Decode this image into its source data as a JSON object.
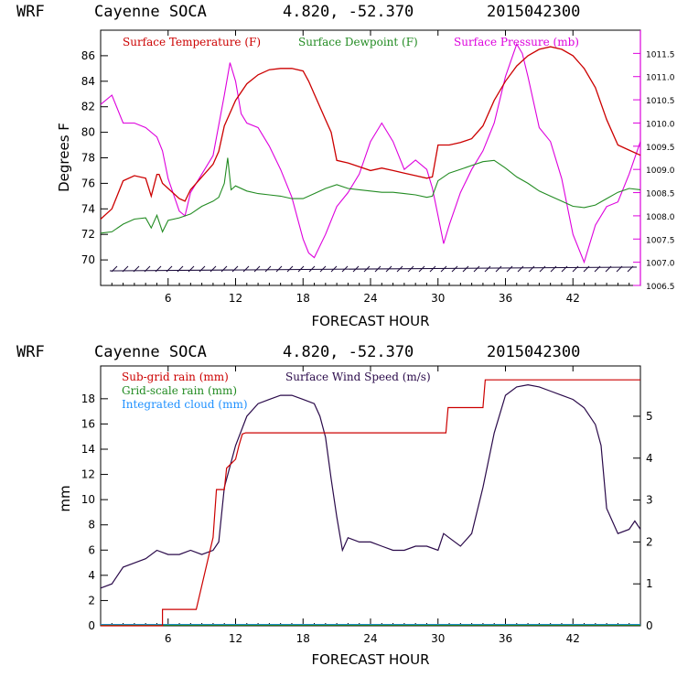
{
  "colors": {
    "temperature": "#cc0000",
    "dewpoint": "#228b22",
    "pressure": "#dd00dd",
    "subgrid": "#cc0000",
    "gridscale": "#228b22",
    "cloud": "#1e90ff",
    "wind": "#2a0a4a",
    "axis": "#000000",
    "barb": "#1a0a3a"
  },
  "chart_data": [
    {
      "type": "line",
      "header": {
        "model": "WRF",
        "station": "Cayenne SOCA",
        "coords": "4.820, -52.370",
        "run": "2015042300"
      },
      "xlabel": "FORECAST HOUR",
      "ylabel": "Degrees F",
      "xlim": [
        0,
        48
      ],
      "ylim": [
        68,
        88
      ],
      "y2lim": [
        1006.5,
        1012.0
      ],
      "x_ticks": [
        "6",
        "12",
        "18",
        "24",
        "30",
        "36",
        "42"
      ],
      "y_ticks": [
        "70",
        "72",
        "74",
        "76",
        "78",
        "80",
        "82",
        "84",
        "86"
      ],
      "y2_ticks": [
        "1006.5",
        "1007.0",
        "1007.5",
        "1008.0",
        "1008.5",
        "1009.0",
        "1009.5",
        "1010.0",
        "1010.5",
        "1011.0",
        "1011.5"
      ],
      "series": [
        {
          "name": "Surface Temperature (F)",
          "axis": "left",
          "x": [
            0,
            1,
            2,
            3,
            4,
            4.5,
            5,
            5.2,
            5.5,
            6,
            7,
            7.5,
            8,
            9,
            10,
            10.5,
            11,
            12,
            13,
            14,
            15,
            16,
            17,
            18,
            18.5,
            19,
            20,
            20.5,
            21,
            22,
            23,
            24,
            25,
            26,
            27,
            28,
            29,
            29.5,
            30,
            30.5,
            31,
            32,
            33,
            34,
            35,
            36,
            37,
            38,
            39,
            40,
            41,
            42,
            43,
            44,
            45,
            46,
            47,
            48
          ],
          "y": [
            73.2,
            74.0,
            76.2,
            76.6,
            76.4,
            75.0,
            76.7,
            76.7,
            76.0,
            75.6,
            74.8,
            74.6,
            75.5,
            76.5,
            77.5,
            78.5,
            80.5,
            82.5,
            83.8,
            84.5,
            84.9,
            85.0,
            85.0,
            84.8,
            84.0,
            83.0,
            81.0,
            80.0,
            77.8,
            77.6,
            77.3,
            77.0,
            77.2,
            77.0,
            76.8,
            76.6,
            76.4,
            76.5,
            79.0,
            79.0,
            79.0,
            79.2,
            79.5,
            80.5,
            82.5,
            84.0,
            85.2,
            86.0,
            86.5,
            86.7,
            86.5,
            86.0,
            85.0,
            83.5,
            81.0,
            79.0,
            78.6,
            78.2
          ]
        },
        {
          "name": "Surface Dewpoint (F)",
          "axis": "left",
          "x": [
            0,
            1,
            2,
            3,
            4,
            4.5,
            5,
            5.5,
            6,
            7,
            8,
            9,
            10,
            10.5,
            11,
            11.3,
            11.6,
            12,
            13,
            14,
            15,
            16,
            17,
            18,
            19,
            20,
            21,
            22,
            23,
            24,
            25,
            26,
            27,
            28,
            29,
            29.5,
            30,
            31,
            32,
            33,
            34,
            35,
            36,
            37,
            38,
            39,
            40,
            41,
            42,
            43,
            44,
            45,
            46,
            47,
            48
          ],
          "y": [
            72.1,
            72.2,
            72.8,
            73.2,
            73.3,
            72.5,
            73.5,
            72.2,
            73.1,
            73.3,
            73.6,
            74.2,
            74.6,
            74.9,
            76.0,
            78.0,
            75.5,
            75.8,
            75.4,
            75.2,
            75.1,
            75.0,
            74.8,
            74.8,
            75.2,
            75.6,
            75.9,
            75.6,
            75.5,
            75.4,
            75.3,
            75.3,
            75.2,
            75.1,
            74.9,
            75.0,
            76.2,
            76.8,
            77.1,
            77.4,
            77.7,
            77.8,
            77.2,
            76.5,
            76.0,
            75.4,
            75.0,
            74.6,
            74.2,
            74.1,
            74.3,
            74.8,
            75.3,
            75.6,
            75.5
          ]
        },
        {
          "name": "Surface Pressure (mb)",
          "axis": "right",
          "x": [
            0,
            1,
            2,
            3,
            4,
            5,
            5.5,
            6,
            7,
            7.5,
            8,
            9,
            10,
            11,
            11.5,
            12,
            12.5,
            13,
            14,
            15,
            16,
            17,
            18,
            18.5,
            19,
            20,
            21,
            22,
            23,
            24,
            25,
            26,
            27,
            28,
            29,
            29.5,
            30,
            30.5,
            31,
            32,
            33,
            34,
            35,
            36,
            37,
            37.5,
            38,
            39,
            40,
            41,
            42,
            43,
            44,
            45,
            46,
            47,
            48
          ],
          "y": [
            1010.4,
            1010.6,
            1010.0,
            1010.0,
            1009.9,
            1009.7,
            1009.4,
            1008.8,
            1008.1,
            1008.0,
            1008.5,
            1008.9,
            1009.3,
            1010.6,
            1011.3,
            1010.9,
            1010.2,
            1010.0,
            1009.9,
            1009.5,
            1009.0,
            1008.4,
            1007.5,
            1007.2,
            1007.1,
            1007.6,
            1008.2,
            1008.5,
            1008.9,
            1009.6,
            1010.0,
            1009.6,
            1009.0,
            1009.2,
            1009.0,
            1008.6,
            1008.0,
            1007.4,
            1007.8,
            1008.5,
            1009.0,
            1009.4,
            1010.0,
            1011.0,
            1011.7,
            1011.5,
            1011.0,
            1009.9,
            1009.6,
            1008.8,
            1007.6,
            1007.0,
            1007.8,
            1008.2,
            1008.3,
            1008.9,
            1009.6
          ]
        }
      ]
    },
    {
      "type": "line",
      "header": {
        "model": "WRF",
        "station": "Cayenne SOCA",
        "coords": "4.820, -52.370",
        "run": "2015042300"
      },
      "xlabel": "FORECAST HOUR",
      "ylabel": "mm",
      "xlim": [
        0,
        48
      ],
      "ylim": [
        0,
        20.6
      ],
      "y2lim": [
        0,
        6.2
      ],
      "x_ticks": [
        "6",
        "12",
        "18",
        "24",
        "30",
        "36",
        "42"
      ],
      "y_ticks": [
        "0",
        "2",
        "4",
        "6",
        "8",
        "10",
        "12",
        "14",
        "16",
        "18"
      ],
      "y2_ticks": [
        "0",
        "1",
        "2",
        "3",
        "4",
        "5"
      ],
      "series": [
        {
          "name": "Sub-grid rain (mm)",
          "axis": "left",
          "x": [
            0,
            5.5,
            5.5,
            8.5,
            10,
            10.3,
            11,
            11.2,
            12,
            12.3,
            12.6,
            12.9,
            30.7,
            30.9,
            34,
            34.2,
            48
          ],
          "y": [
            0,
            0,
            1.3,
            1.3,
            7.0,
            10.8,
            10.8,
            12.5,
            13.2,
            14.3,
            15.2,
            15.3,
            15.3,
            17.3,
            17.3,
            19.5,
            19.5
          ]
        },
        {
          "name": "Grid-scale rain (mm)",
          "axis": "left",
          "x": [
            0,
            48
          ],
          "y": [
            0.05,
            0.05
          ]
        },
        {
          "name": "Integrated cloud (mm)",
          "axis": "left",
          "x": [
            0,
            48
          ],
          "y": [
            0.1,
            0.1
          ]
        },
        {
          "name": "Surface Wind Speed (m/s)",
          "axis": "right",
          "x": [
            0,
            1,
            2,
            3,
            4,
            5,
            6,
            7,
            8,
            9,
            10,
            10.5,
            11,
            12,
            13,
            14,
            15,
            16,
            17,
            18,
            19,
            19.5,
            20,
            20.5,
            21,
            21.5,
            22,
            23,
            24,
            25,
            26,
            27,
            28,
            29,
            30,
            30.5,
            31,
            32,
            33,
            34,
            35,
            36,
            37,
            38,
            39,
            40,
            41,
            42,
            43,
            44,
            44.5,
            45,
            46,
            47,
            47.5,
            48
          ],
          "y": [
            0.9,
            1.0,
            1.4,
            1.5,
            1.6,
            1.8,
            1.7,
            1.7,
            1.8,
            1.7,
            1.8,
            2.0,
            3.3,
            4.3,
            5.0,
            5.3,
            5.4,
            5.5,
            5.5,
            5.4,
            5.3,
            5.0,
            4.5,
            3.5,
            2.6,
            1.8,
            2.1,
            2.0,
            2.0,
            1.9,
            1.8,
            1.8,
            1.9,
            1.9,
            1.8,
            2.2,
            2.1,
            1.9,
            2.2,
            3.3,
            4.6,
            5.5,
            5.7,
            5.75,
            5.7,
            5.6,
            5.5,
            5.4,
            5.2,
            4.8,
            4.3,
            2.8,
            2.2,
            2.3,
            2.5,
            2.3
          ]
        }
      ]
    }
  ]
}
